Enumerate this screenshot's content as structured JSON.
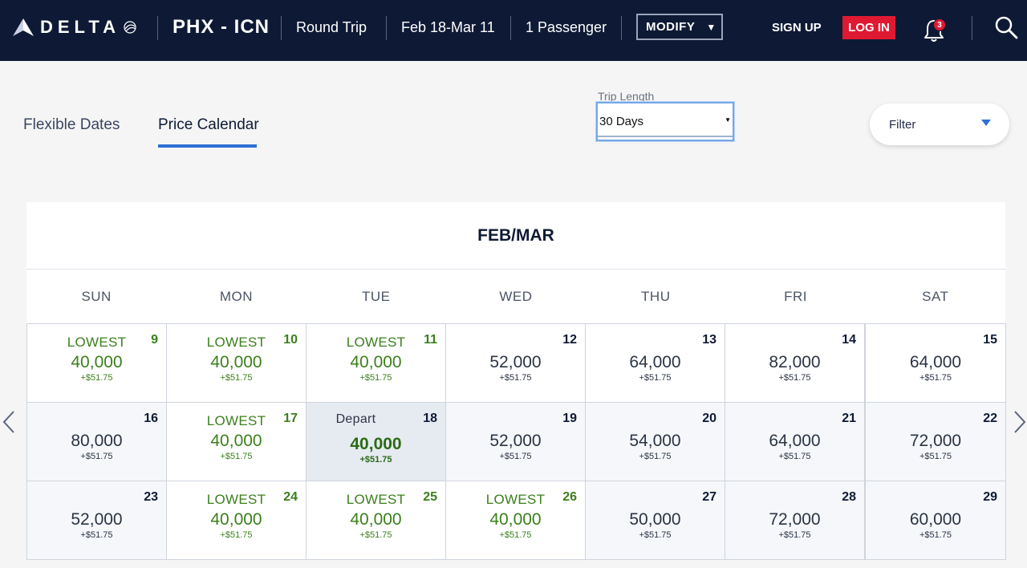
{
  "header": {
    "logo_text": "DELTA",
    "route": "PHX - ICN",
    "trip_type": "Round Trip",
    "dates": "Feb 18-Mar 11",
    "passengers": "1 Passenger",
    "modify_label": "MODIFY",
    "signup_label": "SIGN UP",
    "login_label": "LOG IN",
    "notification_count": "3",
    "colors": {
      "background": "#0e1a35",
      "login": "#e01933"
    }
  },
  "tabs": [
    {
      "label": "Flexible Dates",
      "active": false
    },
    {
      "label": "Price Calendar",
      "active": true
    }
  ],
  "trip_length": {
    "label": "Trip Length",
    "value": "30 Days"
  },
  "filter": {
    "label": "Filter"
  },
  "calendar": {
    "month": "FEB/MAR",
    "weekdays": [
      "SUN",
      "MON",
      "TUE",
      "WED",
      "THU",
      "FRI",
      "SAT"
    ],
    "weeks": [
      [
        {
          "day": "9",
          "tag": "LOWEST",
          "miles": "40,000",
          "fee": "+$51.75"
        },
        {
          "day": "10",
          "tag": "LOWEST",
          "miles": "40,000",
          "fee": "+$51.75"
        },
        {
          "day": "11",
          "tag": "LOWEST",
          "miles": "40,000",
          "fee": "+$51.75"
        },
        {
          "day": "12",
          "tag": "",
          "miles": "52,000",
          "fee": "+$51.75"
        },
        {
          "day": "13",
          "tag": "",
          "miles": "64,000",
          "fee": "+$51.75"
        },
        {
          "day": "14",
          "tag": "",
          "miles": "82,000",
          "fee": "+$51.75"
        },
        {
          "day": "15",
          "tag": "",
          "miles": "64,000",
          "fee": "+$51.75"
        }
      ],
      [
        {
          "day": "16",
          "tag": "",
          "miles": "80,000",
          "fee": "+$51.75"
        },
        {
          "day": "17",
          "tag": "LOWEST",
          "miles": "40,000",
          "fee": "+$51.75"
        },
        {
          "day": "18",
          "tag": "Depart",
          "miles": "40,000",
          "fee": "+$51.75"
        },
        {
          "day": "19",
          "tag": "",
          "miles": "52,000",
          "fee": "+$51.75"
        },
        {
          "day": "20",
          "tag": "",
          "miles": "54,000",
          "fee": "+$51.75"
        },
        {
          "day": "21",
          "tag": "",
          "miles": "64,000",
          "fee": "+$51.75"
        },
        {
          "day": "22",
          "tag": "",
          "miles": "72,000",
          "fee": "+$51.75"
        }
      ],
      [
        {
          "day": "23",
          "tag": "",
          "miles": "52,000",
          "fee": "+$51.75"
        },
        {
          "day": "24",
          "tag": "LOWEST",
          "miles": "40,000",
          "fee": "+$51.75"
        },
        {
          "day": "25",
          "tag": "LOWEST",
          "miles": "40,000",
          "fee": "+$51.75"
        },
        {
          "day": "26",
          "tag": "LOWEST",
          "miles": "40,000",
          "fee": "+$51.75"
        },
        {
          "day": "27",
          "tag": "",
          "miles": "50,000",
          "fee": "+$51.75"
        },
        {
          "day": "28",
          "tag": "",
          "miles": "72,000",
          "fee": "+$51.75"
        },
        {
          "day": "29",
          "tag": "",
          "miles": "60,000",
          "fee": "+$51.75"
        }
      ]
    ]
  }
}
